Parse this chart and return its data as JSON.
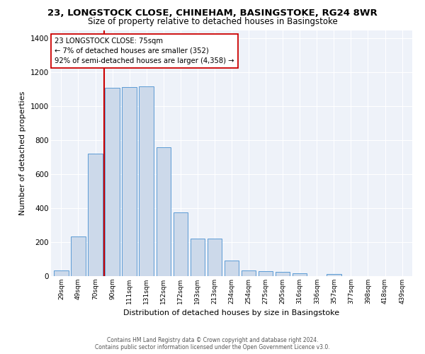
{
  "title": "23, LONGSTOCK CLOSE, CHINEHAM, BASINGSTOKE, RG24 8WR",
  "subtitle": "Size of property relative to detached houses in Basingstoke",
  "xlabel": "Distribution of detached houses by size in Basingstoke",
  "ylabel": "Number of detached properties",
  "footer_line1": "Contains HM Land Registry data © Crown copyright and database right 2024.",
  "footer_line2": "Contains public sector information licensed under the Open Government Licence v3.0.",
  "categories": [
    "29sqm",
    "49sqm",
    "70sqm",
    "90sqm",
    "111sqm",
    "131sqm",
    "152sqm",
    "172sqm",
    "193sqm",
    "213sqm",
    "234sqm",
    "254sqm",
    "275sqm",
    "295sqm",
    "316sqm",
    "336sqm",
    "357sqm",
    "377sqm",
    "398sqm",
    "418sqm",
    "439sqm"
  ],
  "values": [
    35,
    235,
    720,
    1110,
    1115,
    1120,
    760,
    375,
    220,
    220,
    90,
    32,
    28,
    25,
    18,
    0,
    12,
    0,
    0,
    0,
    0
  ],
  "bar_color": "#ccd9ea",
  "bar_edge_color": "#5b9bd5",
  "property_line_color": "#cc0000",
  "annotation_text": "23 LONGSTOCK CLOSE: 75sqm\n← 7% of detached houses are smaller (352)\n92% of semi-detached houses are larger (4,358) →",
  "annotation_box_color": "#ffffff",
  "annotation_box_edge": "#cc0000",
  "ylim": [
    0,
    1450
  ],
  "yticks": [
    0,
    200,
    400,
    600,
    800,
    1000,
    1200,
    1400
  ],
  "title_fontsize": 9.5,
  "subtitle_fontsize": 8.5,
  "xlabel_fontsize": 8,
  "ylabel_fontsize": 8,
  "bar_width": 0.85,
  "background_color": "#eef2f9",
  "grid_color": "#ffffff"
}
